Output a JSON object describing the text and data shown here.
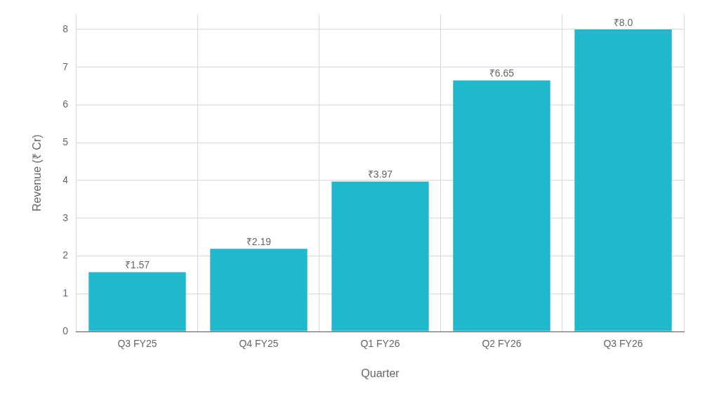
{
  "chart_data": {
    "type": "bar",
    "xlabel": "Quarter",
    "ylabel": "Revenue (₹ Cr)",
    "categories": [
      "Q3 FY25",
      "Q4 FY25",
      "Q1 FY26",
      "Q2 FY26",
      "Q3 FY26"
    ],
    "values": [
      1.57,
      2.19,
      3.97,
      6.65,
      8.0
    ],
    "value_labels": [
      "₹1.57",
      "₹2.19",
      "₹3.97",
      "₹6.65",
      "₹8.0"
    ],
    "color": "#21b8cd",
    "ylim": [
      0,
      8.4
    ],
    "yticks": [
      0,
      1,
      2,
      3,
      4,
      5,
      6,
      7,
      8
    ],
    "grid": true
  }
}
